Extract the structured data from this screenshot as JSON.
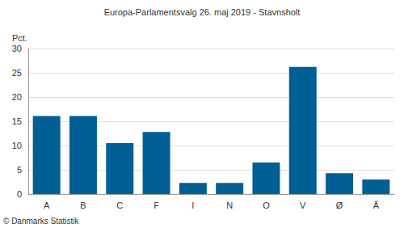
{
  "chart_data": {
    "type": "bar",
    "title": "Europa-Parlamentsvalg 26. maj 2019 - Stavnsholt",
    "ylabel": "Pct.",
    "annotations": [
      "© Danmarks Statistik"
    ],
    "categories": [
      "A",
      "B",
      "C",
      "F",
      "I",
      "N",
      "O",
      "V",
      "Ø",
      "Å"
    ],
    "values": [
      16.1,
      16.1,
      10.5,
      12.8,
      2.3,
      2.3,
      6.5,
      26.2,
      4.3,
      3.0
    ],
    "color": "#005f94",
    "ylim": [
      0,
      30
    ],
    "yticks": [
      0,
      5,
      10,
      15,
      20,
      25,
      30
    ],
    "grid": true
  }
}
